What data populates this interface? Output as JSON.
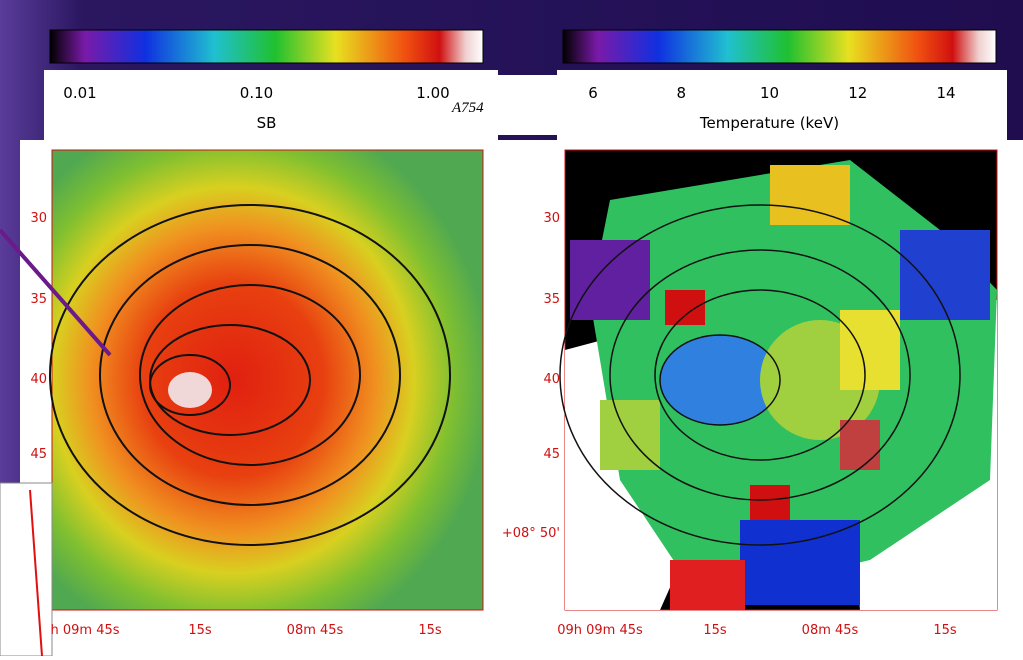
{
  "object": "A754",
  "panels": [
    {
      "colorbar": {
        "ticks": [
          "0.01",
          "0.10",
          "1.00"
        ],
        "label": "SB"
      },
      "y_ticks": [
        "30",
        "35",
        "40",
        "45"
      ],
      "x_ticks": [
        "h 09m 45s",
        "15s",
        "08m 45s",
        "15s"
      ]
    },
    {
      "colorbar": {
        "ticks": [
          "6",
          "8",
          "10",
          "12",
          "14"
        ],
        "label": "Temperature (keV)"
      },
      "y_ticks": [
        "30",
        "35",
        "40",
        "45",
        "+08° 50'"
      ],
      "x_ticks": [
        "09h 09m 45s",
        "15s",
        "08m 45s",
        "15s"
      ]
    }
  ]
}
